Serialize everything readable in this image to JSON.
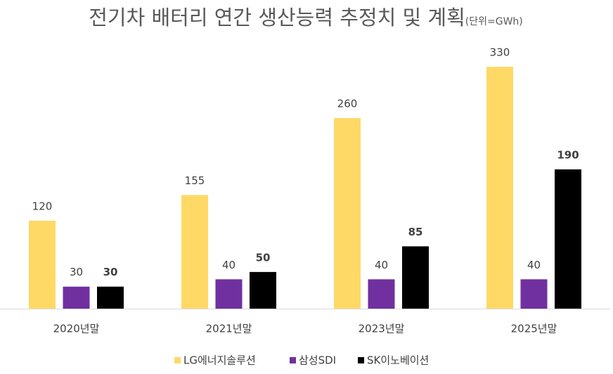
{
  "chart_data": {
    "type": "bar",
    "title": "전기차 배터리 연간 생산능력 추정치 및 계획",
    "subtitle": "(단위=GWh)",
    "categories": [
      "2020년말",
      "2021년말",
      "2023년말",
      "2025년말"
    ],
    "series": [
      {
        "name": "LG에너지솔루션",
        "color": "#FFD966",
        "values": [
          120,
          155,
          260,
          330
        ]
      },
      {
        "name": "삼성SDI",
        "color": "#7030A0",
        "values": [
          30,
          40,
          40,
          40
        ]
      },
      {
        "name": "SK이노베이션",
        "color": "#000000",
        "values": [
          30,
          50,
          85,
          190
        ],
        "bold": true
      }
    ],
    "legend": "bottom"
  }
}
